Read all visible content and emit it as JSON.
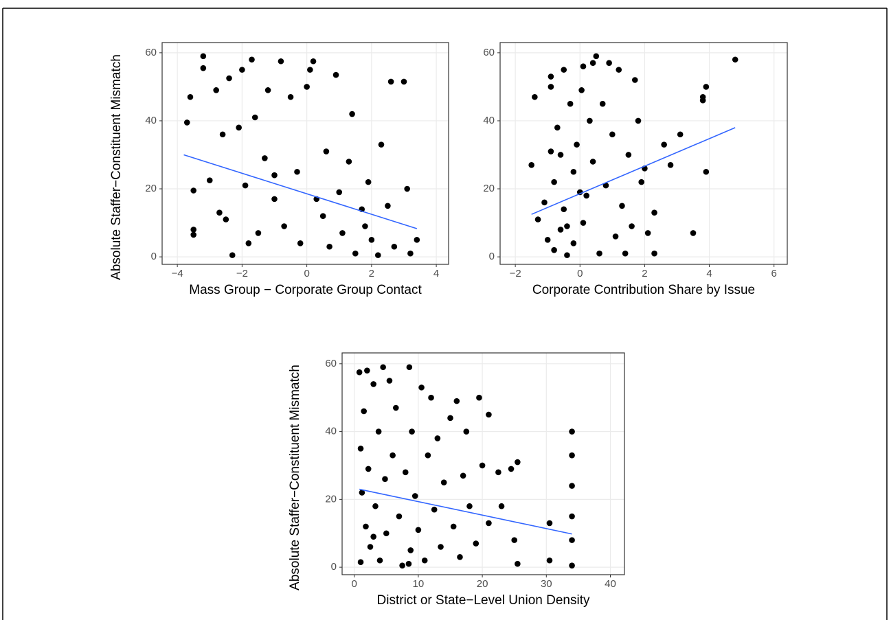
{
  "chart_data": [
    {
      "type": "scatter",
      "xlabel": "Mass Group − Corporate Group Contact",
      "ylabel": "Absolute Staffer−Constituent Mismatch",
      "x": [
        -3.7,
        -3.6,
        -3.5,
        -3.5,
        -3.5,
        -3.2,
        -3.2,
        -3.0,
        -2.8,
        -2.7,
        -2.6,
        -2.4,
        -2.3,
        -2.1,
        -2.0,
        -1.9,
        -1.8,
        -1.7,
        -1.6,
        -1.5,
        -1.3,
        -1.2,
        -1.0,
        -0.8,
        -0.7,
        -0.5,
        -0.3,
        -0.2,
        0.1,
        0.2,
        0.3,
        0.5,
        0.6,
        0.7,
        0.9,
        1.0,
        1.1,
        1.3,
        1.4,
        1.5,
        1.7,
        1.9,
        2.0,
        2.3,
        2.5,
        2.6,
        2.7,
        3.0,
        3.1,
        3.2,
        3.4,
        0.0,
        -1.0,
        1.8,
        -2.5,
        2.2
      ],
      "y": [
        39.5,
        47,
        19.5,
        8,
        6.5,
        59,
        55.5,
        22.5,
        49,
        13,
        36,
        52.5,
        0.5,
        38,
        55,
        21,
        4,
        58,
        41,
        7,
        29,
        49,
        17,
        57.5,
        9,
        47,
        25,
        4,
        55,
        57.5,
        17,
        12,
        31,
        3,
        53.5,
        19,
        7,
        28,
        42,
        1,
        14,
        22,
        5,
        33,
        15,
        51.5,
        3,
        51.5,
        20,
        1,
        5,
        50,
        24,
        9,
        11,
        0.5
      ],
      "point_color": "#000000",
      "fit_line": {
        "x": [
          -3.8,
          3.4
        ],
        "y": [
          30,
          8.3
        ],
        "color": "#3366ff"
      },
      "xlim": [
        -4.47,
        4.38
      ],
      "ylim": [
        -2.2,
        63
      ],
      "xticks": [
        {
          "value": -4,
          "label": "−4"
        },
        {
          "value": -2,
          "label": "−2"
        },
        0,
        2,
        4
      ],
      "yticks": [
        0,
        20,
        40,
        60
      ],
      "grid": true
    },
    {
      "type": "scatter",
      "xlabel": "Corporate Contribution Share by Issue",
      "x": [
        -1.5,
        -1.4,
        -1.3,
        -1.1,
        -1.0,
        -0.9,
        -0.9,
        -0.8,
        -0.8,
        -0.7,
        -0.6,
        -0.6,
        -0.5,
        -0.5,
        -0.4,
        -0.3,
        -0.2,
        -0.2,
        -0.1,
        0.0,
        0.05,
        0.1,
        0.1,
        0.3,
        0.4,
        0.4,
        0.5,
        0.6,
        0.7,
        0.8,
        0.9,
        1.0,
        1.1,
        1.2,
        1.3,
        1.4,
        1.5,
        1.6,
        1.7,
        1.8,
        1.9,
        2.0,
        2.1,
        2.3,
        2.3,
        2.6,
        2.8,
        3.1,
        3.5,
        3.8,
        3.8,
        3.9,
        3.9,
        4.8,
        -0.9,
        0.2,
        -0.4
      ],
      "y": [
        27,
        47,
        11,
        16,
        5,
        50,
        53,
        22,
        2,
        38,
        30,
        8,
        55,
        14,
        0.5,
        45,
        25,
        4,
        33,
        19,
        49,
        56,
        10,
        40,
        57,
        28,
        59,
        1,
        45,
        21,
        57,
        36,
        6,
        55,
        15,
        1,
        30,
        9,
        52,
        40,
        22,
        26,
        7,
        13,
        1,
        33,
        27,
        36,
        7,
        47,
        46,
        50,
        25,
        58,
        31,
        18,
        9
      ],
      "point_color": "#000000",
      "fit_line": {
        "x": [
          -1.5,
          4.8
        ],
        "y": [
          12.5,
          38
        ],
        "color": "#3366ff"
      },
      "xlim": [
        -2.47,
        6.41
      ],
      "ylim": [
        -2.2,
        63
      ],
      "xticks": [
        {
          "value": -2,
          "label": "−2"
        },
        0,
        2,
        4,
        6
      ],
      "yticks": [
        0,
        20,
        40,
        60
      ],
      "grid": true
    },
    {
      "type": "scatter",
      "xlabel": "District or State−Level Union Density",
      "ylabel": "Absolute Staffer−Constituent Mismatch",
      "x": [
        0.8,
        1,
        1,
        1.2,
        1.5,
        1.8,
        2,
        2.2,
        2.5,
        3,
        3.3,
        3.8,
        4,
        4.5,
        4.8,
        5,
        5.5,
        6,
        6.5,
        7,
        7.5,
        8,
        8.6,
        8.8,
        9,
        9.5,
        10,
        10.5,
        11,
        11.5,
        12,
        12.5,
        13,
        13.5,
        14,
        15,
        15.5,
        16,
        16.5,
        17,
        17.5,
        18,
        19,
        19.5,
        20,
        21,
        21,
        22.5,
        23,
        24.5,
        25,
        25.5,
        25.5,
        30.5,
        30.5,
        34,
        34,
        34,
        34,
        34,
        34,
        8.5,
        3
      ],
      "y": [
        57.5,
        1.5,
        35,
        22,
        46,
        12,
        58,
        29,
        6,
        54,
        18,
        40,
        2,
        59,
        26,
        10,
        55,
        33,
        47,
        15,
        0.5,
        28,
        59,
        5,
        40,
        21,
        11,
        53,
        2,
        33,
        50,
        17,
        38,
        6,
        25,
        44,
        12,
        49,
        3,
        27,
        40,
        18,
        7,
        50,
        30,
        45,
        13,
        28,
        18,
        29,
        8,
        31,
        1,
        13,
        2,
        40,
        33,
        24,
        15,
        8,
        0.5,
        1,
        9
      ],
      "point_color": "#000000",
      "fit_line": {
        "x": [
          0.8,
          34
        ],
        "y": [
          23,
          9.8
        ],
        "color": "#3366ff"
      },
      "xlim": [
        -1.9,
        42.2
      ],
      "ylim": [
        -2.2,
        63.2
      ],
      "xticks": [
        0,
        10,
        20,
        30,
        40
      ],
      "yticks": [
        0,
        20,
        40,
        60
      ],
      "grid": true
    }
  ]
}
